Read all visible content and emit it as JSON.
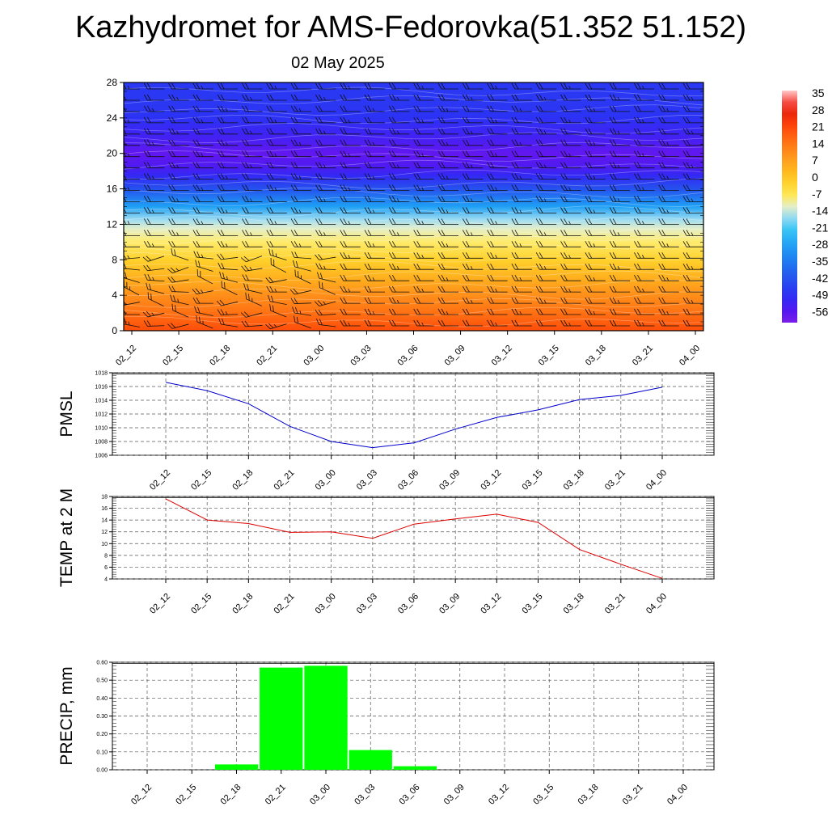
{
  "title": "Kazhydromet for AMS-Fedorovka(51.352 51.152)",
  "subtitle": "02 May 2025",
  "time_labels": [
    "02_12",
    "02_15",
    "02_18",
    "02_21",
    "03_00",
    "03_03",
    "03_06",
    "03_09",
    "03_12",
    "03_15",
    "03_18",
    "03_21",
    "04_00"
  ],
  "colors": {
    "pmsl_line": "#0000cc",
    "temp_line": "#dd0000",
    "precip_bar": "#00ff00",
    "grid": "#555555"
  },
  "chart_data": [
    {
      "id": "upper-air",
      "type": "heatmap",
      "ylim": [
        0,
        28
      ],
      "yticks": [
        "0",
        "4",
        "8",
        "12",
        "16",
        "20",
        "24",
        "28"
      ],
      "colorbar_labels": [
        "35",
        "28",
        "21",
        "14",
        "7",
        "0",
        "-7",
        "-14",
        "-21",
        "-28",
        "-35",
        "-42",
        "-49",
        "-56"
      ],
      "colorbar_range": [
        -60,
        36
      ],
      "levels_km": [
        0,
        2,
        4,
        6,
        8,
        10,
        11.5,
        12.5,
        14,
        16,
        17.5,
        18.5,
        20,
        22,
        24,
        26,
        28
      ],
      "temperature_profile": [
        20,
        15,
        10,
        4,
        -2,
        -8,
        -12,
        -16,
        -28,
        -42,
        -50,
        -54,
        -57,
        -52,
        -48,
        -47,
        -47
      ],
      "wind_barbs": "present"
    },
    {
      "id": "pmsl",
      "type": "line",
      "ylabel": "PMSL",
      "ylim": [
        1006,
        1018
      ],
      "yticks": [
        "1006",
        "1008",
        "1010",
        "1012",
        "1014",
        "1016",
        "1018"
      ],
      "values": [
        1016.6,
        1015.4,
        1013.5,
        1010.2,
        1008.0,
        1007.1,
        1007.8,
        1009.8,
        1011.5,
        1012.6,
        1014.1,
        1014.7,
        1015.9
      ]
    },
    {
      "id": "temp2m",
      "type": "line",
      "ylabel": "TEMP at 2 M",
      "ylim": [
        4,
        18
      ],
      "yticks": [
        "4",
        "6",
        "8",
        "10",
        "12",
        "14",
        "16",
        "18"
      ],
      "values": [
        17.6,
        14.0,
        13.4,
        11.9,
        12.0,
        10.9,
        13.3,
        14.2,
        15.0,
        13.6,
        9.0,
        6.5,
        4.1
      ]
    },
    {
      "id": "precip",
      "type": "bar",
      "ylabel": "PRECIP, mm",
      "ylim": [
        0,
        0.6
      ],
      "yticks": [
        "0.00",
        "0.10",
        "0.20",
        "0.30",
        "0.40",
        "0.50",
        "0.60"
      ],
      "values": [
        0,
        0,
        0.03,
        0.57,
        0.58,
        0.11,
        0.02,
        0,
        0,
        0,
        0,
        0,
        0
      ]
    }
  ]
}
